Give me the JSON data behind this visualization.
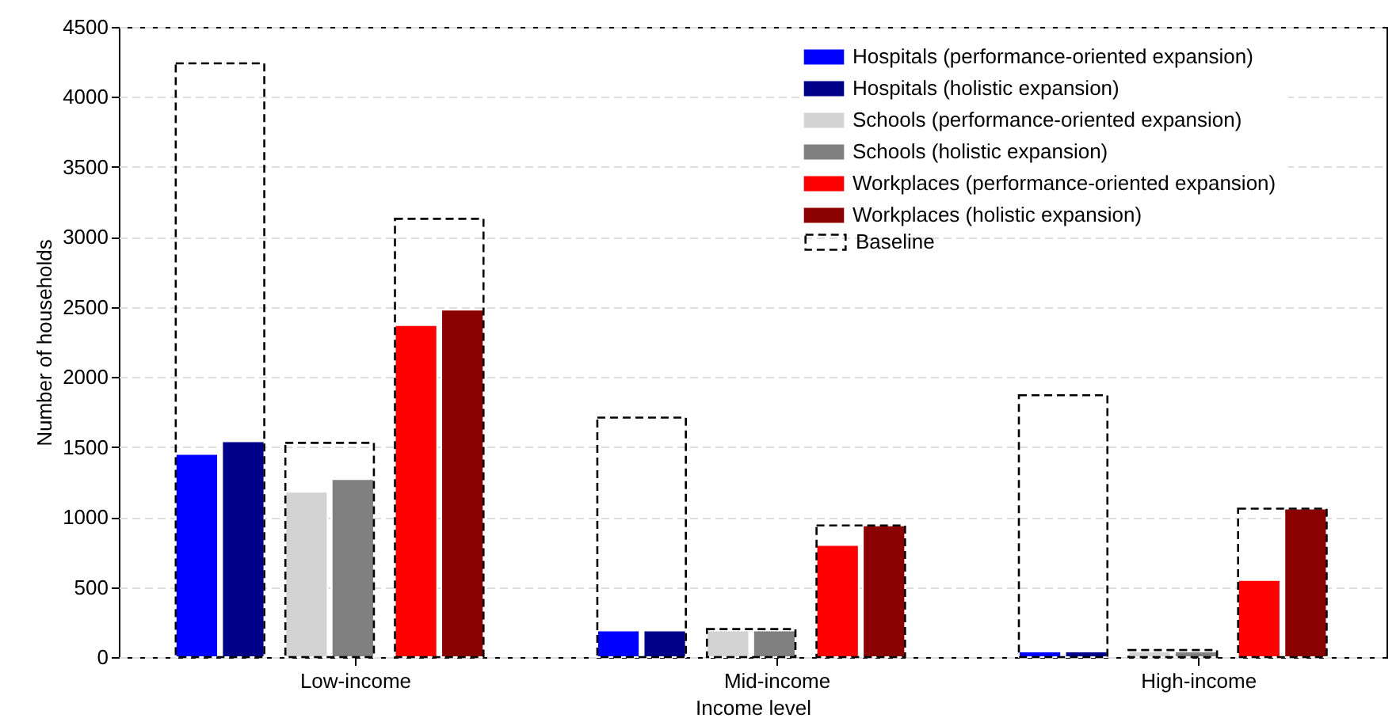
{
  "chart_data": {
    "type": "bar",
    "xlabel": "Income level",
    "ylabel": "Number of households",
    "categories": [
      "Low-income",
      "Mid-income",
      "High-income"
    ],
    "series": [
      {
        "name": "Hospitals (performance-oriented expansion)",
        "color": "#0000ff",
        "values": [
          1450,
          190,
          40
        ]
      },
      {
        "name": "Hospitals (holistic expansion)",
        "color": "#00008b",
        "values": [
          1540,
          190,
          40
        ]
      },
      {
        "name": "Schools (performance-oriented expansion)",
        "color": "#d3d3d3",
        "values": [
          1180,
          190,
          40
        ]
      },
      {
        "name": "Schools (holistic expansion)",
        "color": "#808080",
        "values": [
          1270,
          190,
          40
        ]
      },
      {
        "name": "Workplaces (performance-oriented expansion)",
        "color": "#ff0000",
        "values": [
          2370,
          800,
          550
        ]
      },
      {
        "name": "Workplaces (holistic expansion)",
        "color": "#8b0000",
        "values": [
          2480,
          940,
          1060
        ]
      },
      {
        "name": "Baseline",
        "color": "#000000",
        "line_style": "dashed",
        "values": [
          4240,
          1710,
          1870
        ]
      },
      {
        "color": "#000000",
        "line_style": "dashed",
        "values": [
          1530,
          200,
          50
        ]
      },
      {
        "color": "#000000",
        "line_style": "dashed",
        "values": [
          3130,
          940,
          1060
        ]
      }
    ],
    "ylim": [
      0,
      4500
    ],
    "yticks": [
      0,
      500,
      1000,
      1500,
      2000,
      2500,
      3000,
      3500,
      4000,
      4500
    ],
    "grid": "y",
    "legend": "top right"
  }
}
